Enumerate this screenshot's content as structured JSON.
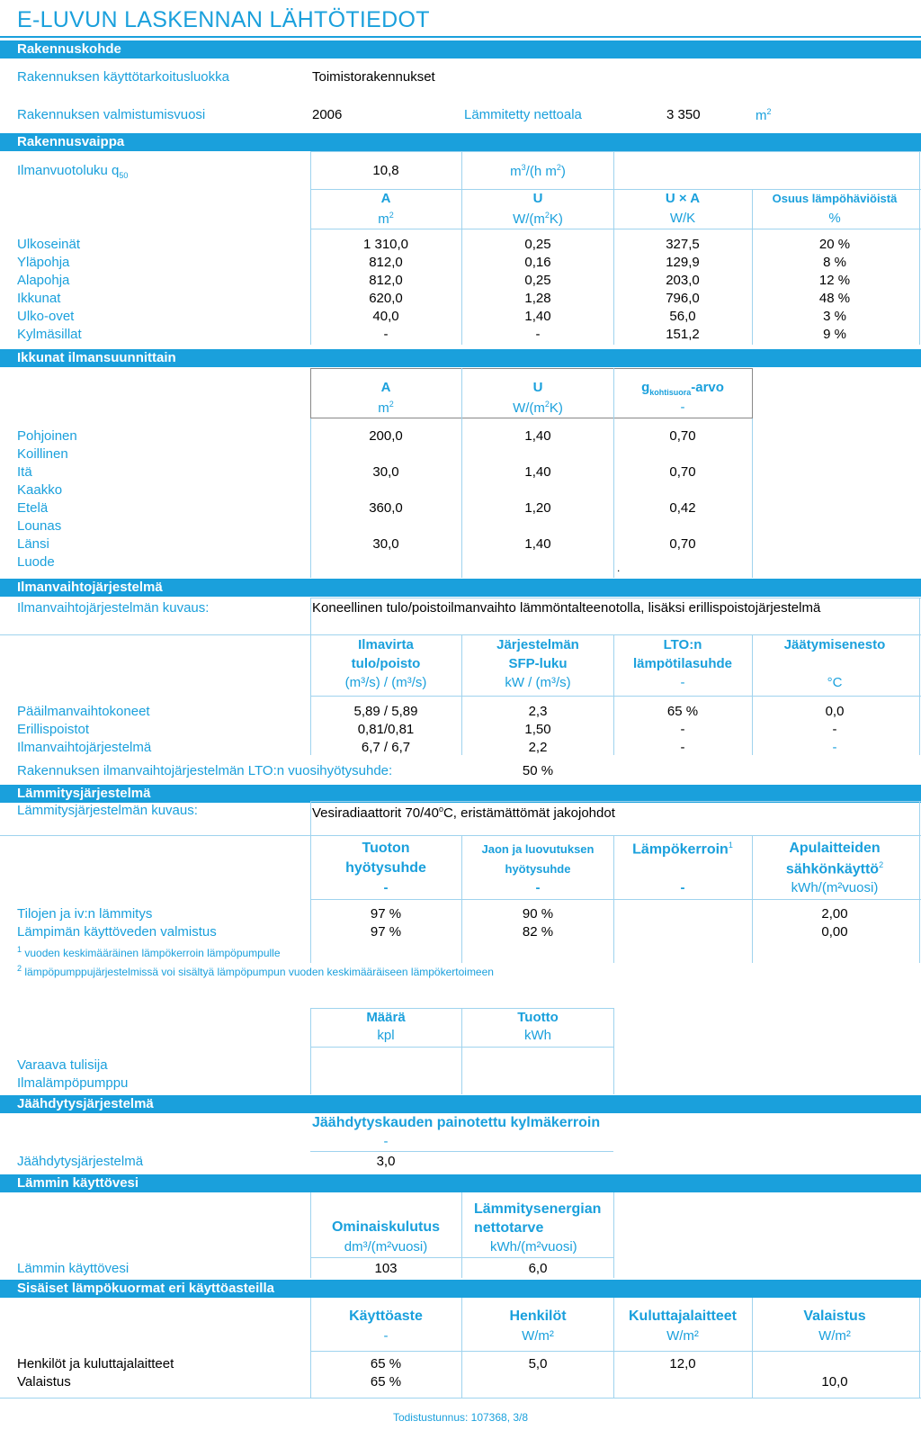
{
  "title": "E-LUVUN LASKENNAN LÄHTÖTIEDOT",
  "rakennuskohde": {
    "header": "Rakennuskohde",
    "kayttotarkoitus_label": "Rakennuksen käyttötarkoitusluokka",
    "kayttotarkoitus_value": "Toimistorakennukset",
    "valmistumisvuosi_label": "Rakennuksen valmistumisvuosi",
    "valmistumisvuosi_value": "2006",
    "nettoala_label": "Lämmitetty nettoala",
    "nettoala_value": "3 350",
    "nettoala_unit": "m"
  },
  "rakennusvaippa": {
    "header": "Rakennusvaippa",
    "ilmanvuotoluku_label": "Ilmanvuotoluku q",
    "ilmanvuotoluku_sub": "50",
    "ilmanvuotoluku_value": "10,8",
    "ilmanvuotoluku_unit_a": "m",
    "ilmanvuotoluku_unit_b": "/(h m",
    "ilmanvuotoluku_unit_c": ")",
    "col_a": "A",
    "col_a_unit": "m",
    "col_u": "U",
    "col_u_unit_a": "W/(m",
    "col_u_unit_b": "K)",
    "col_ua": "U × A",
    "col_ua_unit": "W/K",
    "col_osuus": "Osuus lämpöhäviöistä",
    "col_osuus_unit": "%",
    "rows": [
      {
        "name": "Ulkoseinät",
        "a": "1 310,0",
        "u": "0,25",
        "ua": "327,5",
        "osuus": "20 %"
      },
      {
        "name": "Yläpohja",
        "a": "812,0",
        "u": "0,16",
        "ua": "129,9",
        "osuus": "8 %"
      },
      {
        "name": "Alapohja",
        "a": "812,0",
        "u": "0,25",
        "ua": "203,0",
        "osuus": "12 %"
      },
      {
        "name": "Ikkunat",
        "a": "620,0",
        "u": "1,28",
        "ua": "796,0",
        "osuus": "48 %"
      },
      {
        "name": "Ulko-ovet",
        "a": "40,0",
        "u": "1,40",
        "ua": "56,0",
        "osuus": "3 %"
      },
      {
        "name": "Kylmäsillat",
        "a": "-",
        "u": "-",
        "ua": "151,2",
        "osuus": "9 %"
      }
    ]
  },
  "ikkunat": {
    "header": "Ikkunat ilmansuunnittain",
    "col_a": "A",
    "col_a_unit": "m",
    "col_u": "U",
    "col_u_unit_a": "W/(m",
    "col_u_unit_b": "K)",
    "col_g": "g",
    "col_g_sub": "kohtisuora",
    "col_g_suffix": "-arvo",
    "col_g_unit": "-",
    "rows": [
      {
        "name": "Pohjoinen",
        "a": "200,0",
        "u": "1,40",
        "g": "0,70"
      },
      {
        "name": "Koillinen",
        "a": "",
        "u": "",
        "g": ""
      },
      {
        "name": "Itä",
        "a": "30,0",
        "u": "1,40",
        "g": "0,70"
      },
      {
        "name": "Kaakko",
        "a": "",
        "u": "",
        "g": ""
      },
      {
        "name": "Etelä",
        "a": "360,0",
        "u": "1,20",
        "g": "0,42"
      },
      {
        "name": "Lounas",
        "a": "",
        "u": "",
        "g": ""
      },
      {
        "name": "Länsi",
        "a": "30,0",
        "u": "1,40",
        "g": "0,70"
      },
      {
        "name": "Luode",
        "a": "",
        "u": "",
        "g": ""
      }
    ],
    "dot": "."
  },
  "ilmanvaihto": {
    "header": "Ilmanvaihtojärjestelmä",
    "kuvaus_label": "Ilmanvaihtojärjestelmän kuvaus:",
    "kuvaus_value": "Koneellinen tulo/poistoilmanvaihto lämmöntalteenotolla, lisäksi erillispoistojärjestelmä",
    "col1_a": "Ilmavirta",
    "col1_b": "tulo/poisto",
    "col1_unit": "(m³/s) / (m³/s)",
    "col2_a": "Järjestelmän",
    "col2_b": "SFP-luku",
    "col2_unit": "kW / (m³/s)",
    "col3_a": "LTO:n",
    "col3_b": "lämpötilasuhde",
    "col3_unit": "-",
    "col4_a": "Jäätymisenesto",
    "col4_unit": "°C",
    "rows": [
      {
        "name": "Pääilmanvaihtokoneet",
        "c1": "5,89 / 5,89",
        "c2": "2,3",
        "c3": "65 %",
        "c4": "0,0"
      },
      {
        "name": "Erillispoistot",
        "c1": "0,81/0,81",
        "c2": "1,50",
        "c3": "-",
        "c4": "-"
      },
      {
        "name": "Ilmanvaihtojärjestelmä",
        "c1": "6,7 / 6,7",
        "c2": "2,2",
        "c3": "-",
        "c4": "-"
      }
    ],
    "lto_label": "Rakennuksen ilmanvaihtojärjestelmän LTO:n vuosihyötysuhde:",
    "lto_value": "50 %"
  },
  "lammitys": {
    "header": "Lämmitysjärjestelmä",
    "kuvaus_label": "Lämmitysjärjestelmän kuvaus:",
    "kuvaus_value_a": "Vesiradiaattorit 70/40",
    "kuvaus_value_sup": "o",
    "kuvaus_value_b": "C, eristämättömät jakojohdot",
    "col1_a": "Tuoton",
    "col1_b": "hyötysuhde",
    "col1_unit": "-",
    "col2_a": "Jaon ja luovutuksen",
    "col2_b": "hyötysuhde",
    "col2_unit": "-",
    "col3_a": "Lämpökerroin",
    "col3_sup": "1",
    "col3_unit": "-",
    "col4_a": "Apulaitteiden",
    "col4_b": "sähkönkäyttö",
    "col4_sup": "2",
    "col4_unit": "kWh/(m²vuosi)",
    "rows": [
      {
        "name": "Tilojen ja iv:n lämmitys",
        "c1": "97 %",
        "c2": "90 %",
        "c3": "",
        "c4": "2,00"
      },
      {
        "name": "Lämpimän käyttöveden valmistus",
        "c1": "97 %",
        "c2": "82 %",
        "c3": "",
        "c4": "0,00"
      }
    ],
    "note1_num": "1",
    "note1": "vuoden keskimääräinen lämpökerroin lämpöpumpulle",
    "note2_num": "2",
    "note2": "lämpöpumppujärjestelmissä voi sisältyä lämpöpumpun vuoden keskimääräiseen lämpökertoimeen",
    "col_maara": "Määrä",
    "col_maara_unit": "kpl",
    "col_tuotto": "Tuotto",
    "col_tuotto_unit": "kWh",
    "extra_rows": [
      "Varaava tulisija",
      "Ilmalämpöpumppu"
    ]
  },
  "jaahdytys": {
    "header": "Jäähdytysjärjestelmä",
    "col": "Jäähdytyskauden painotettu kylmäkerroin",
    "col_unit": "-",
    "row_label": "Jäähdytysjärjestelmä",
    "row_value": "3,0"
  },
  "kayttovesi": {
    "header": "Lämmin käyttövesi",
    "col1": "Ominaiskulutus",
    "col1_unit": "dm³/(m²vuosi)",
    "col2_a": "Lämmitysenergian",
    "col2_b": "nettotarve",
    "col2_unit": "kWh/(m²vuosi)",
    "row_label": "Lämmin käyttövesi",
    "c1": "103",
    "c2": "6,0"
  },
  "lampokuormat": {
    "header": "Sisäiset lämpökuormat eri käyttöasteilla",
    "col1": "Käyttöaste",
    "col1_unit": "-",
    "col2": "Henkilöt",
    "col2_unit": "W/m²",
    "col3": "Kuluttajalaitteet",
    "col3_unit": "W/m²",
    "col4": "Valaistus",
    "col4_unit": "W/m²",
    "rows": [
      {
        "name": "Henkilöt ja kuluttajalaitteet",
        "c1": "65 %",
        "c2": "5,0",
        "c3": "12,0",
        "c4": ""
      },
      {
        "name": "Valaistus",
        "c1": "65 %",
        "c2": "",
        "c3": "",
        "c4": "10,0"
      }
    ]
  },
  "footer": "Todistustunnus: 107368, 3/8",
  "colors": {
    "accent": "#1aa0dc",
    "line": "#9fd3ee"
  }
}
